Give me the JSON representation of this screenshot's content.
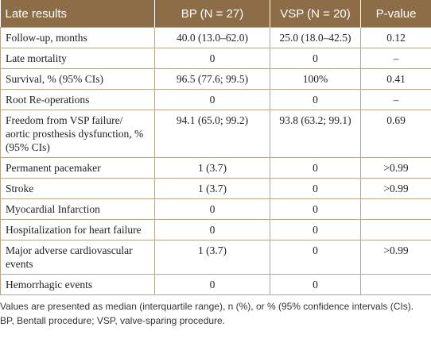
{
  "table": {
    "header": [
      "Late results",
      "BP (N = 27)",
      "VSP (N = 20)",
      "P-value"
    ],
    "rows": [
      [
        "Follow-up, months",
        "40.0 (13.0–62.0)",
        "25.0 (18.0–42.5)",
        "0.12"
      ],
      [
        "Late mortality",
        "0",
        "0",
        "–"
      ],
      [
        "Survival, % (95% CIs)",
        "96.5 (77.6; 99.5)",
        "100%",
        "0.41"
      ],
      [
        "Root Re-operations",
        "0",
        "0",
        "–"
      ],
      [
        "Freedom from VSP failure/ aortic prosthesis dysfunction, % (95% CIs)",
        "94.1 (65.0; 99.2)",
        "93.8 (63.2; 99.1)",
        "0.69"
      ],
      [
        "Permanent pacemaker",
        "1 (3.7)",
        "0",
        ">0.99"
      ],
      [
        "Stroke",
        "1 (3.7)",
        "0",
        ">0.99"
      ],
      [
        "Myocardial Infarction",
        "0",
        "0",
        null
      ],
      [
        "Hospitalization for heart failure",
        "0",
        "0",
        null
      ],
      [
        "Major adverse cardiovascular events",
        "1 (3.7)",
        "0",
        ">0.99"
      ],
      [
        "Hemorrhagic events",
        "0",
        "0",
        null
      ]
    ],
    "footnote": "Values are presented as median (interquartile range), n (%), or % (95% confidence intervals (CIs). BP, Bentall procedure; VSP, valve-sparing procedure."
  }
}
